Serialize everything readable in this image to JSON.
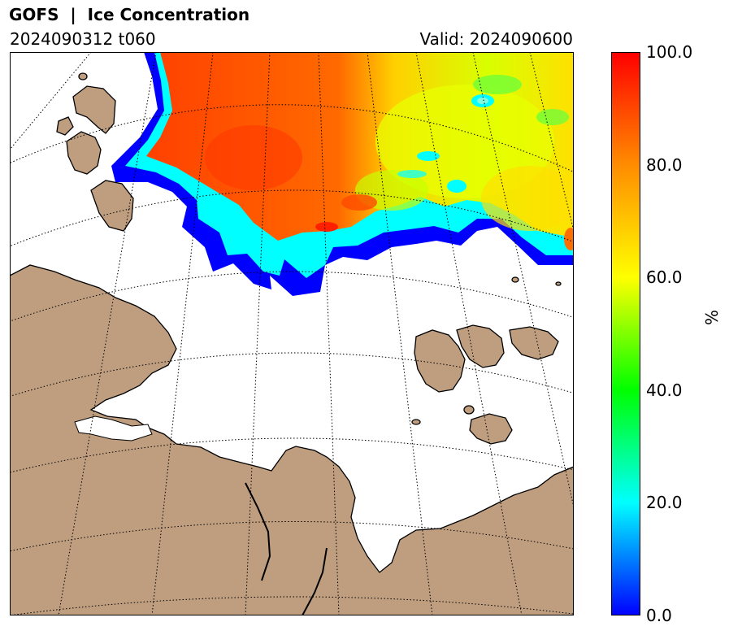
{
  "header": {
    "title": "GOFS  |  Ice Concentration",
    "run": "2024090312 t060",
    "valid": "Valid: 2024090600"
  },
  "colorbar": {
    "ticks": [
      "100.0",
      "80.0",
      "60.0",
      "40.0",
      "20.0",
      "0.0"
    ],
    "unit": "%",
    "colormap": [
      "#0000ff",
      "#00ffff",
      "#00ff00",
      "#ffff00",
      "#ff8c00",
      "#ff0000"
    ]
  },
  "colors": {
    "land": "#bf9e80",
    "ocean": "#ffffff",
    "ice_high": "#ff5a00",
    "ice_mid": "#ffd000",
    "ice_low": "#00ffff",
    "ice_edge": "#0000ff"
  }
}
